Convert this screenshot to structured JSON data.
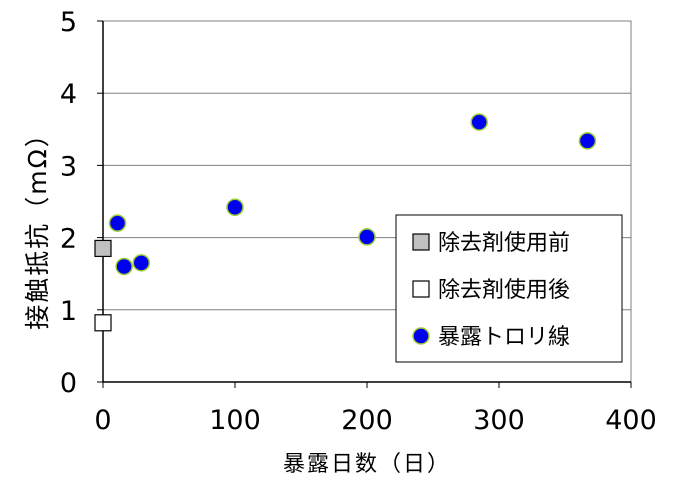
{
  "chart_data": {
    "type": "scatter",
    "xlabel": "暴露日数（日）",
    "ylabel": "接触抵抗（mΩ）",
    "xlim": [
      0,
      400
    ],
    "ylim": [
      0,
      5
    ],
    "x_ticks": [
      "0",
      "100",
      "200",
      "300",
      "400"
    ],
    "y_ticks": [
      "0",
      "1",
      "2",
      "3",
      "4",
      "5"
    ],
    "grid": "horizontal",
    "legend_position": "lower-right",
    "series": [
      {
        "name": "除去剤使用前",
        "marker": "square",
        "fill": "#c0c0c0",
        "stroke": "#000000",
        "points": [
          {
            "x": 0,
            "y": 1.85
          }
        ]
      },
      {
        "name": "除去剤使用後",
        "marker": "square",
        "fill": "#ffffff",
        "stroke": "#000000",
        "points": [
          {
            "x": 0,
            "y": 0.82
          }
        ]
      },
      {
        "name": "暴露トロリ線",
        "marker": "circle",
        "fill": "#0000ee",
        "stroke": "#9acd32",
        "points": [
          {
            "x": 11,
            "y": 2.2
          },
          {
            "x": 16,
            "y": 1.6
          },
          {
            "x": 29,
            "y": 1.65
          },
          {
            "x": 100,
            "y": 2.42
          },
          {
            "x": 200,
            "y": 2.01
          },
          {
            "x": 285,
            "y": 3.6
          },
          {
            "x": 367,
            "y": 3.34
          }
        ]
      }
    ]
  }
}
